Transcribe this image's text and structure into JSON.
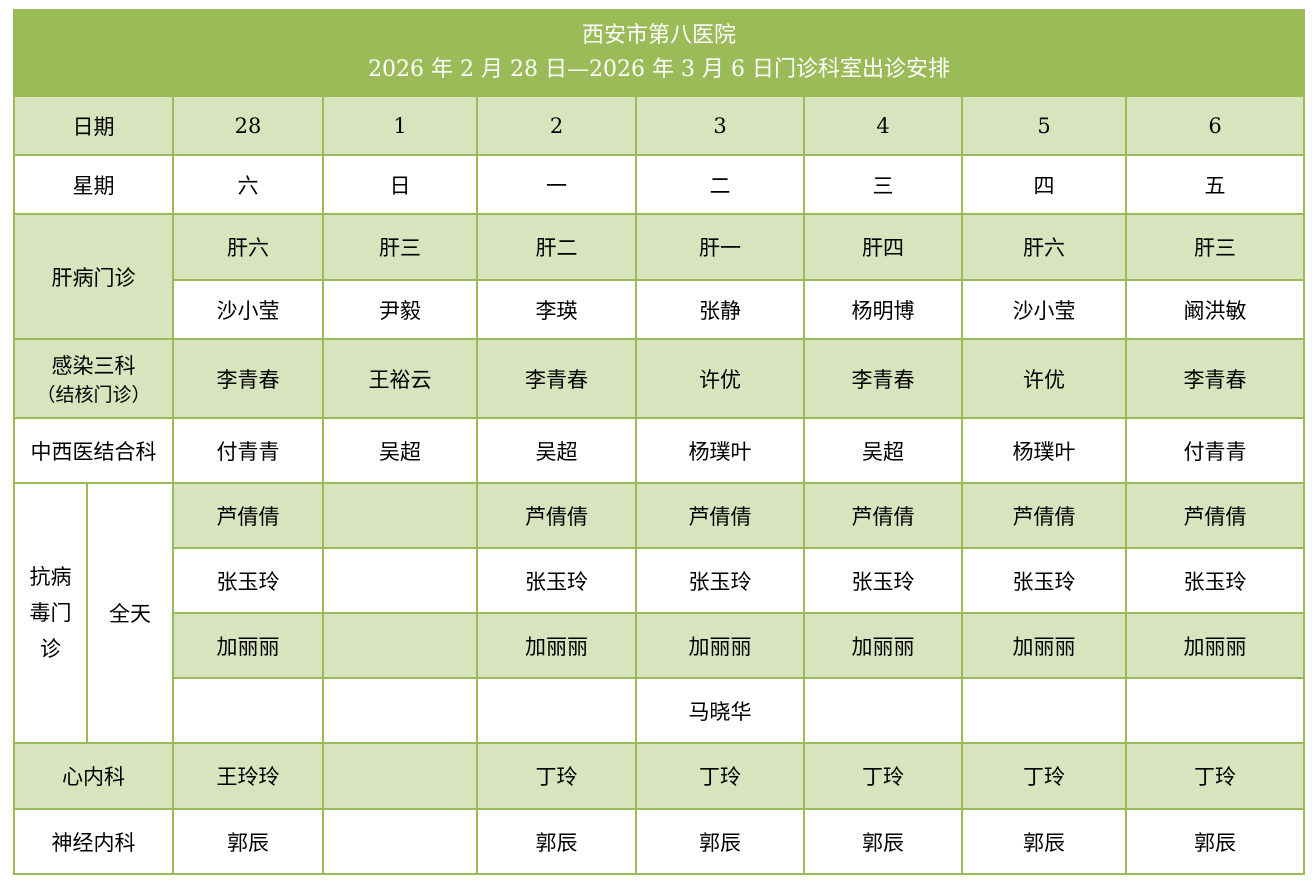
{
  "title": "西安市第八医院",
  "subtitle": "2026 年 2 月 28 日—2026 年 3 月 6 日门诊科室出诊安排",
  "colors": {
    "header": "#9BBB59",
    "shade": "#D7E4BD",
    "border": "#9BBB59"
  },
  "date_label": "日期",
  "dates": [
    "28",
    "1",
    "2",
    "3",
    "4",
    "5",
    "6"
  ],
  "weekday_label": "星期",
  "weekdays": [
    "六",
    "日",
    "一",
    "二",
    "三",
    "四",
    "五"
  ],
  "liver": {
    "label": "肝病门诊",
    "rooms": [
      "肝六",
      "肝三",
      "肝二",
      "肝一",
      "肝四",
      "肝六",
      "肝三"
    ],
    "doctors": [
      "沙小莹",
      "尹毅",
      "李瑛",
      "张静",
      "杨明博",
      "沙小莹",
      "阚洪敏"
    ]
  },
  "infection": {
    "label": "感染三科",
    "sublabel": "（结核门诊）",
    "doctors": [
      "李青春",
      "王裕云",
      "李青春",
      "许优",
      "李青春",
      "许优",
      "李青春"
    ]
  },
  "tcm": {
    "label": "中西医结合科",
    "doctors": [
      "付青青",
      "吴超",
      "吴超",
      "杨璞叶",
      "吴超",
      "杨璞叶",
      "付青青"
    ]
  },
  "antiviral": {
    "label": "抗病毒门诊",
    "period": "全天",
    "rows": [
      [
        "芦倩倩",
        "",
        "芦倩倩",
        "芦倩倩",
        "芦倩倩",
        "芦倩倩",
        "芦倩倩"
      ],
      [
        "张玉玲",
        "",
        "张玉玲",
        "张玉玲",
        "张玉玲",
        "张玉玲",
        "张玉玲"
      ],
      [
        "加丽丽",
        "",
        "加丽丽",
        "加丽丽",
        "加丽丽",
        "加丽丽",
        "加丽丽"
      ],
      [
        "",
        "",
        "",
        "马晓华",
        "",
        "",
        ""
      ]
    ]
  },
  "cardiology": {
    "label": "心内科",
    "doctors": [
      "王玲玲",
      "",
      "丁玲",
      "丁玲",
      "丁玲",
      "丁玲",
      "丁玲"
    ]
  },
  "neurology": {
    "label": "神经内科",
    "doctors": [
      "郭辰",
      "",
      "郭辰",
      "郭辰",
      "郭辰",
      "郭辰",
      "郭辰"
    ]
  }
}
